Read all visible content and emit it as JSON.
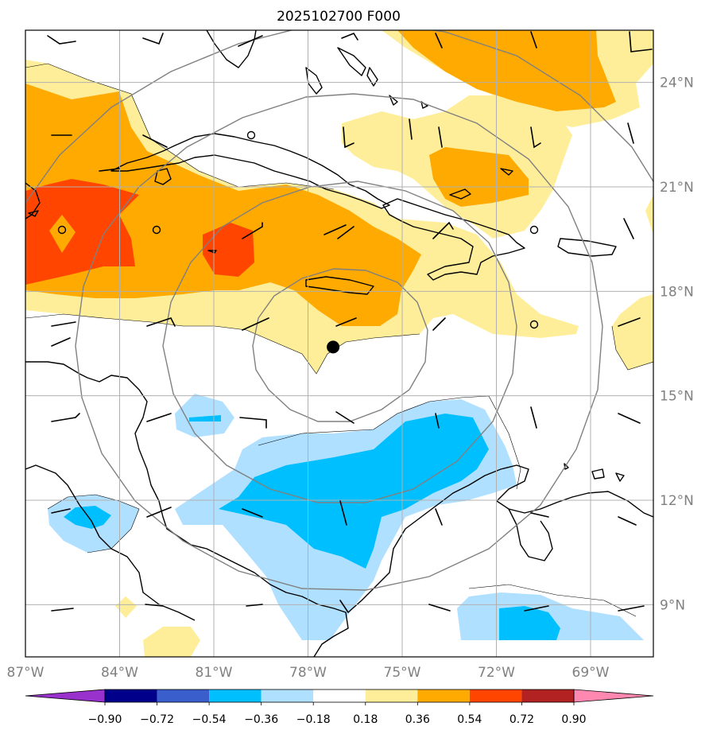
{
  "title": "2025102700 F000",
  "map": {
    "extent": {
      "lon_min": -87.0,
      "lon_max": -67.0,
      "lat_min": 7.5,
      "lat_max": 25.5
    },
    "lat_ticks": [
      {
        "value": 24,
        "label": "24°N"
      },
      {
        "value": 21,
        "label": "21°N"
      },
      {
        "value": 18,
        "label": "18°N"
      },
      {
        "value": 15,
        "label": "15°N"
      },
      {
        "value": 12,
        "label": "12°N"
      },
      {
        "value": 9,
        "label": "9°N"
      }
    ],
    "lon_ticks": [
      {
        "value": -87,
        "label": "87°W"
      },
      {
        "value": -84,
        "label": "84°W"
      },
      {
        "value": -81,
        "label": "81°W"
      },
      {
        "value": -78,
        "label": "78°W"
      },
      {
        "value": -75,
        "label": "75°W"
      },
      {
        "value": -72,
        "label": "72°W"
      },
      {
        "value": -69,
        "label": "69°W"
      }
    ],
    "storm_center": {
      "lon": -77.2,
      "lat": 16.4
    },
    "range_ring_count": 4,
    "colors": {
      "pos_1": "#ffee99",
      "pos_2": "#ffaa00",
      "pos_3": "#ff4500",
      "neg_1": "#b0e0ff",
      "neg_2": "#00bfff",
      "coast": "#000000",
      "grid": "#b0b0b0",
      "rings": "#808080"
    }
  },
  "colorbar": {
    "labels": [
      "−0.90",
      "−0.72",
      "−0.54",
      "−0.36",
      "−0.18",
      "0.18",
      "0.36",
      "0.54",
      "0.72",
      "0.90"
    ],
    "colors": [
      "#9932cc",
      "#00008b",
      "#3a5fcd",
      "#00bfff",
      "#b0e0ff",
      "#ffffff",
      "#ffee99",
      "#ffaa00",
      "#ff4500",
      "#b22222",
      "#ff88b0"
    ]
  }
}
